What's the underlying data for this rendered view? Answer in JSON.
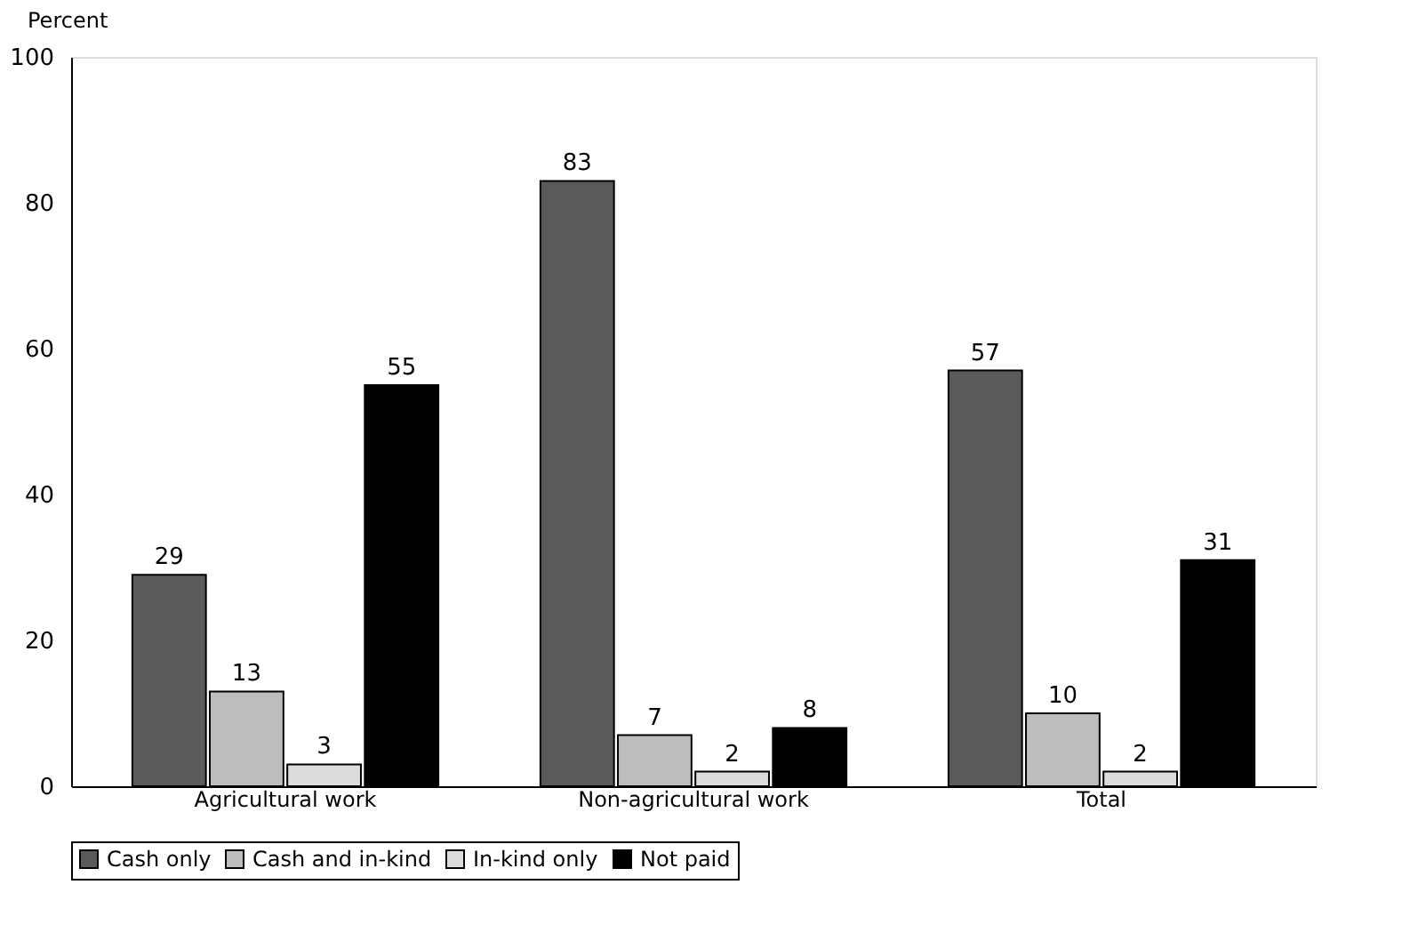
{
  "chart_data": {
    "type": "bar",
    "ylabel": "Percent",
    "categories": [
      "Agricultural work",
      "Non-agricultural work",
      "Total"
    ],
    "series": [
      {
        "name": "Cash only",
        "color": "#5a5a5a",
        "values": [
          29,
          83,
          57
        ]
      },
      {
        "name": "Cash and in-kind",
        "color": "#bdbdbd",
        "values": [
          13,
          7,
          10
        ]
      },
      {
        "name": "In-kind only",
        "color": "#dcdcdc",
        "values": [
          3,
          2,
          2
        ]
      },
      {
        "name": "Not paid",
        "color": "#000000",
        "values": [
          55,
          8,
          31
        ]
      }
    ],
    "ylim": [
      0,
      100
    ],
    "yticks": [
      0,
      20,
      40,
      60,
      80,
      100
    ],
    "grid": false,
    "legend": "bottom",
    "data_labels": true
  }
}
